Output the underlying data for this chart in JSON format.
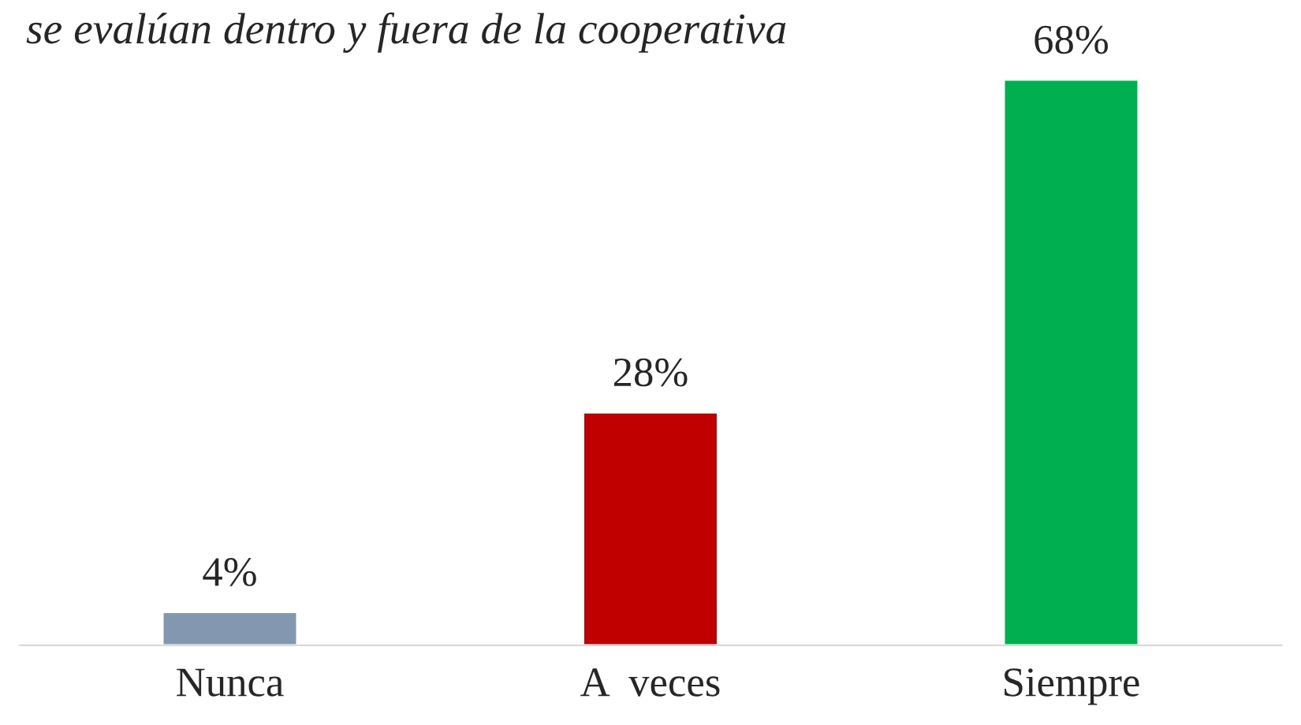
{
  "chart_data": {
    "type": "bar",
    "title": "se evalúan dentro y fuera de la cooperativa",
    "categories": [
      "Nunca",
      "A  veces",
      "Siempre"
    ],
    "values": [
      4,
      28,
      68
    ],
    "colors": [
      "#8497b0",
      "#c00000",
      "#00b050"
    ],
    "value_labels": [
      "4%",
      "28%",
      "68%"
    ],
    "grid": false,
    "legend": false
  }
}
